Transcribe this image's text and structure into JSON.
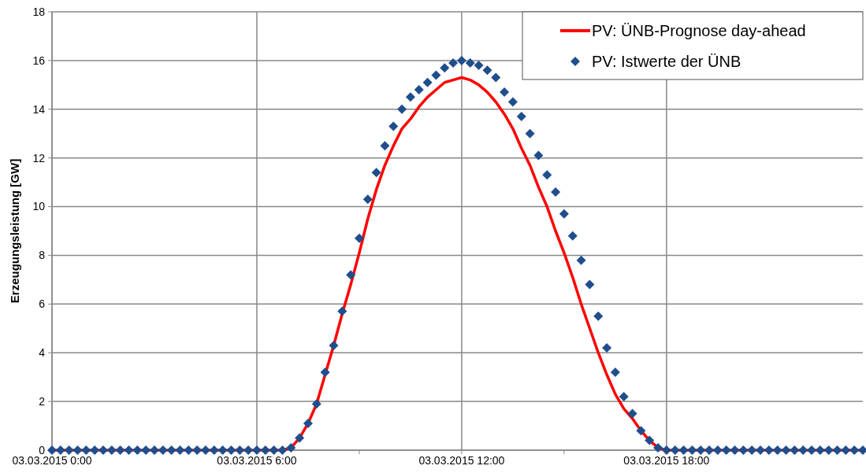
{
  "chart_data": {
    "type": "scatter",
    "ylabel": "Erzeugungsleistung [GW]",
    "x": [
      "2015-03-03T00:00",
      "2015-03-03T00:15",
      "2015-03-03T00:30",
      "2015-03-03T00:45",
      "2015-03-03T01:00",
      "2015-03-03T01:15",
      "2015-03-03T01:30",
      "2015-03-03T01:45",
      "2015-03-03T02:00",
      "2015-03-03T02:15",
      "2015-03-03T02:30",
      "2015-03-03T02:45",
      "2015-03-03T03:00",
      "2015-03-03T03:15",
      "2015-03-03T03:30",
      "2015-03-03T03:45",
      "2015-03-03T04:00",
      "2015-03-03T04:15",
      "2015-03-03T04:30",
      "2015-03-03T04:45",
      "2015-03-03T05:00",
      "2015-03-03T05:15",
      "2015-03-03T05:30",
      "2015-03-03T05:45",
      "2015-03-03T06:00",
      "2015-03-03T06:15",
      "2015-03-03T06:30",
      "2015-03-03T06:45",
      "2015-03-03T07:00",
      "2015-03-03T07:15",
      "2015-03-03T07:30",
      "2015-03-03T07:45",
      "2015-03-03T08:00",
      "2015-03-03T08:15",
      "2015-03-03T08:30",
      "2015-03-03T08:45",
      "2015-03-03T09:00",
      "2015-03-03T09:15",
      "2015-03-03T09:30",
      "2015-03-03T09:45",
      "2015-03-03T10:00",
      "2015-03-03T10:15",
      "2015-03-03T10:30",
      "2015-03-03T10:45",
      "2015-03-03T11:00",
      "2015-03-03T11:15",
      "2015-03-03T11:30",
      "2015-03-03T11:45",
      "2015-03-03T12:00",
      "2015-03-03T12:15",
      "2015-03-03T12:30",
      "2015-03-03T12:45",
      "2015-03-03T13:00",
      "2015-03-03T13:15",
      "2015-03-03T13:30",
      "2015-03-03T13:45",
      "2015-03-03T14:00",
      "2015-03-03T14:15",
      "2015-03-03T14:30",
      "2015-03-03T14:45",
      "2015-03-03T15:00",
      "2015-03-03T15:15",
      "2015-03-03T15:30",
      "2015-03-03T15:45",
      "2015-03-03T16:00",
      "2015-03-03T16:15",
      "2015-03-03T16:30",
      "2015-03-03T16:45",
      "2015-03-03T17:00",
      "2015-03-03T17:15",
      "2015-03-03T17:30",
      "2015-03-03T17:45",
      "2015-03-03T18:00",
      "2015-03-03T18:15",
      "2015-03-03T18:30",
      "2015-03-03T18:45",
      "2015-03-03T19:00",
      "2015-03-03T19:15",
      "2015-03-03T19:30",
      "2015-03-03T19:45",
      "2015-03-03T20:00",
      "2015-03-03T20:15",
      "2015-03-03T20:30",
      "2015-03-03T20:45",
      "2015-03-03T21:00",
      "2015-03-03T21:15",
      "2015-03-03T21:30",
      "2015-03-03T21:45",
      "2015-03-03T22:00",
      "2015-03-03T22:15",
      "2015-03-03T22:30",
      "2015-03-03T22:45",
      "2015-03-03T23:00",
      "2015-03-03T23:15",
      "2015-03-03T23:30",
      "2015-03-03T23:45"
    ],
    "series": [
      {
        "name": "PV: ÜNB-Prognose day-ahead",
        "type": "line",
        "color": "#ff0000",
        "line_style": "solid",
        "marker": "none",
        "x": [
          "2015-03-03T00:00",
          "2015-03-03T06:45",
          "2015-03-03T07:00",
          "2015-03-03T07:15",
          "2015-03-03T07:30",
          "2015-03-03T07:45",
          "2015-03-03T08:00",
          "2015-03-03T08:15",
          "2015-03-03T08:30",
          "2015-03-03T08:45",
          "2015-03-03T09:00",
          "2015-03-03T09:15",
          "2015-03-03T09:30",
          "2015-03-03T09:45",
          "2015-03-03T10:00",
          "2015-03-03T10:15",
          "2015-03-03T10:30",
          "2015-03-03T10:45",
          "2015-03-03T11:00",
          "2015-03-03T11:15",
          "2015-03-03T11:30",
          "2015-03-03T11:45",
          "2015-03-03T12:00",
          "2015-03-03T12:15",
          "2015-03-03T12:30",
          "2015-03-03T12:45",
          "2015-03-03T13:00",
          "2015-03-03T13:15",
          "2015-03-03T13:30",
          "2015-03-03T13:45",
          "2015-03-03T14:00",
          "2015-03-03T14:15",
          "2015-03-03T14:30",
          "2015-03-03T14:45",
          "2015-03-03T15:00",
          "2015-03-03T15:15",
          "2015-03-03T15:30",
          "2015-03-03T15:45",
          "2015-03-03T16:00",
          "2015-03-03T16:15",
          "2015-03-03T16:30",
          "2015-03-03T16:45",
          "2015-03-03T17:00",
          "2015-03-03T17:15",
          "2015-03-03T17:30",
          "2015-03-03T17:45",
          "2015-03-03T18:00",
          "2015-03-03T23:45"
        ],
        "values": [
          0,
          0,
          0.1,
          0.5,
          1.1,
          1.9,
          3.1,
          4.3,
          5.6,
          6.8,
          8.1,
          9.5,
          10.7,
          11.7,
          12.5,
          13.2,
          13.6,
          14.1,
          14.5,
          14.8,
          15.1,
          15.2,
          15.3,
          15.2,
          15,
          14.7,
          14.3,
          13.8,
          13.2,
          12.4,
          11.7,
          10.8,
          10,
          9,
          8.1,
          7.1,
          6,
          5,
          4,
          3.1,
          2.3,
          1.7,
          1.3,
          0.8,
          0.4,
          0.1,
          0,
          0
        ]
      },
      {
        "name": "PV: Istwerte der ÜNB",
        "color": "#1f4e8c",
        "marker": "diamond",
        "values": [
          0,
          0,
          0,
          0,
          0,
          0,
          0,
          0,
          0,
          0,
          0,
          0,
          0,
          0,
          0,
          0,
          0,
          0,
          0,
          0,
          0,
          0,
          0,
          0,
          0,
          0,
          0,
          0,
          0.1,
          0.5,
          1.1,
          1.9,
          3.2,
          4.3,
          5.7,
          7.2,
          8.7,
          10.3,
          11.4,
          12.5,
          13.3,
          14,
          14.5,
          14.8,
          15.1,
          15.4,
          15.7,
          15.9,
          16,
          15.9,
          15.8,
          15.6,
          15.3,
          14.7,
          14.3,
          13.7,
          13,
          12.1,
          11.3,
          10.6,
          9.7,
          8.8,
          7.8,
          6.8,
          5.5,
          4.2,
          3.2,
          2.2,
          1.5,
          0.8,
          0.4,
          0.1,
          0,
          0,
          0,
          0,
          0,
          0,
          0,
          0,
          0,
          0,
          0,
          0,
          0,
          0,
          0,
          0,
          0,
          0,
          0,
          0,
          0,
          0,
          0,
          0
        ]
      }
    ],
    "xlim": [
      "2015-03-03T00:00",
      "2015-03-03T23:45"
    ],
    "xticks": [
      {
        "value": "2015-03-03T00:00",
        "label": "03.03.2015 0:00"
      },
      {
        "value": "2015-03-03T03:00",
        "label": null
      },
      {
        "value": "2015-03-03T06:00",
        "label": "03.03.2015 6:00"
      },
      {
        "value": "2015-03-03T09:00",
        "label": null
      },
      {
        "value": "2015-03-03T12:00",
        "label": "03.03.2015 12:00"
      },
      {
        "value": "2015-03-03T15:00",
        "label": null
      },
      {
        "value": "2015-03-03T18:00",
        "label": "03.03.2015 18:00"
      },
      {
        "value": "2015-03-03T21:00",
        "label": null
      }
    ],
    "ylim": [
      0,
      18
    ],
    "yticks": [
      0,
      2,
      4,
      6,
      8,
      10,
      12,
      14,
      16,
      18
    ],
    "grid": true,
    "legend": "top right"
  }
}
